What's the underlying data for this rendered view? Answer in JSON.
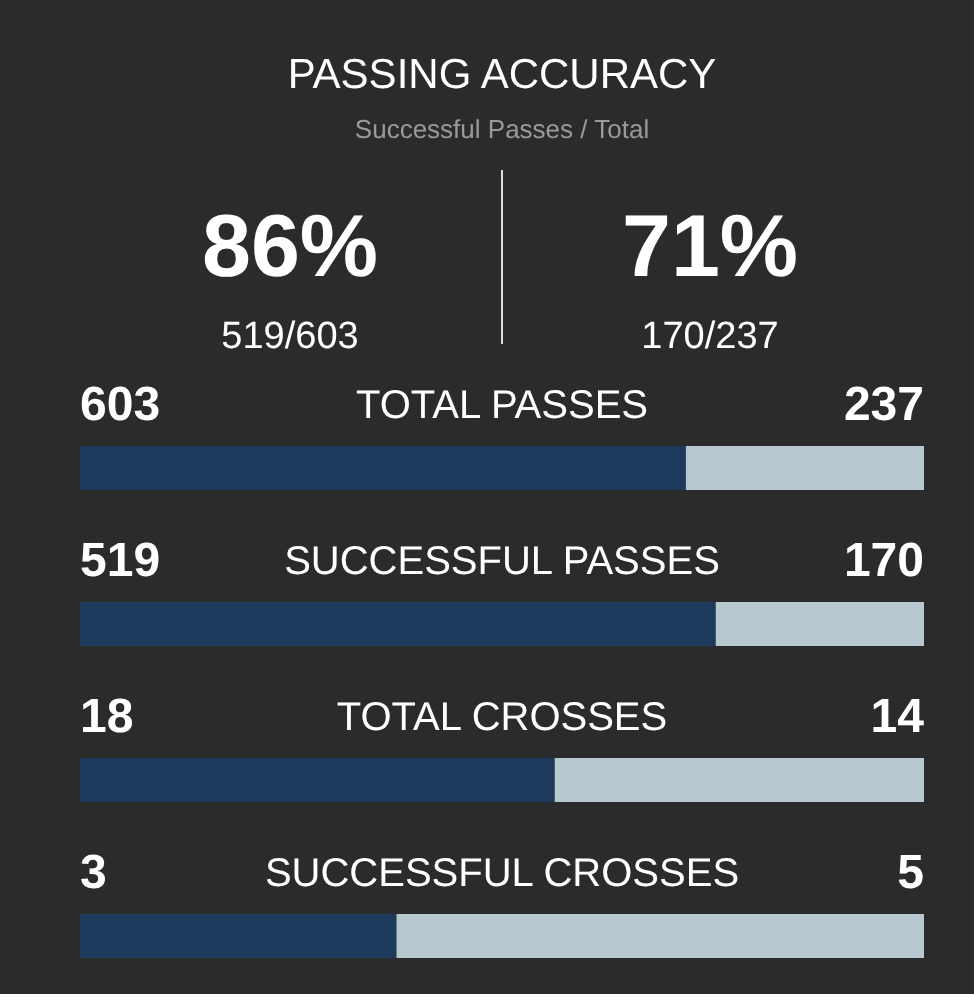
{
  "chart_data": [
    {
      "type": "other",
      "title": "PASSING ACCURACY",
      "subtitle": "Successful Passes / Total",
      "annotations": [
        "86%",
        "519/603",
        "71%",
        "170/237"
      ]
    },
    {
      "type": "bar",
      "orientation": "horizontal",
      "stacked": true,
      "title": "TOTAL PASSES",
      "categories": [
        null
      ],
      "xlim": [
        0,
        840
      ],
      "data_labels": true,
      "tick_labels": false,
      "series": [
        {
          "color": "#1d3a5c",
          "values": [
            603
          ]
        },
        {
          "color": "#b7c8cf",
          "values": [
            237
          ]
        }
      ]
    },
    {
      "type": "bar",
      "orientation": "horizontal",
      "stacked": true,
      "title": "SUCCESSFUL PASSES",
      "categories": [
        null
      ],
      "xlim": [
        0,
        689
      ],
      "data_labels": true,
      "tick_labels": false,
      "series": [
        {
          "color": "#1d3a5c",
          "values": [
            519
          ]
        },
        {
          "color": "#b7c8cf",
          "values": [
            170
          ]
        }
      ]
    },
    {
      "type": "bar",
      "orientation": "horizontal",
      "stacked": true,
      "title": "TOTAL CROSSES",
      "categories": [
        null
      ],
      "xlim": [
        0,
        32
      ],
      "data_labels": true,
      "tick_labels": false,
      "series": [
        {
          "color": "#1d3a5c",
          "values": [
            18
          ]
        },
        {
          "color": "#b7c8cf",
          "values": [
            14
          ]
        }
      ]
    },
    {
      "type": "bar",
      "orientation": "horizontal",
      "stacked": true,
      "title": "SUCCESSFUL CROSSES",
      "categories": [
        null
      ],
      "xlim": [
        0,
        8
      ],
      "data_labels": true,
      "tick_labels": false,
      "series": [
        {
          "color": "#1d3a5c",
          "values": [
            3
          ]
        },
        {
          "color": "#b7c8cf",
          "values": [
            5
          ]
        }
      ]
    }
  ]
}
